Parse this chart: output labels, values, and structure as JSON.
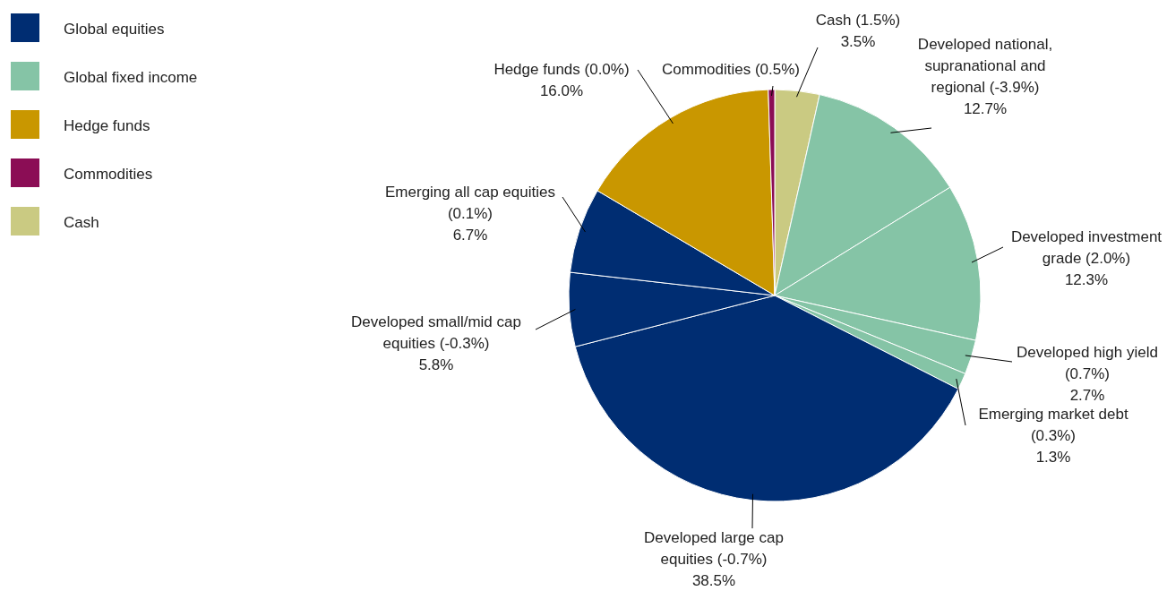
{
  "chart_data": {
    "type": "pie",
    "categories": [
      "Cash (1.5%)",
      "Developed national, supranational and regional (-3.9%)",
      "Developed investment grade (2.0%)",
      "Developed high yield (0.7%)",
      "Emerging market debt (0.3%)",
      "Developed large cap equities (-0.7%)",
      "Developed small/mid cap equities (-0.3%)",
      "Emerging all cap equities (0.1%)",
      "Hedge funds (0.0%)",
      "Commodities (0.5%)"
    ],
    "values": [
      3.5,
      12.7,
      12.3,
      2.7,
      1.3,
      38.5,
      5.8,
      6.7,
      16.0,
      0.5
    ],
    "colors": [
      "#caca82",
      "#85c4a6",
      "#85c4a6",
      "#85c4a6",
      "#85c4a6",
      "#002d72",
      "#002d72",
      "#002d72",
      "#c99700",
      "#8b0d55"
    ],
    "annotations": [
      "Global equities",
      "Global fixed income",
      "Hedge funds",
      "Commodities",
      "Cash"
    ],
    "value_labels": [
      "3.5%",
      "12.7%",
      "12.3%",
      "2.7%",
      "1.3%",
      "38.5%",
      "5.8%",
      "6.7%",
      "16.0%",
      null
    ]
  }
}
